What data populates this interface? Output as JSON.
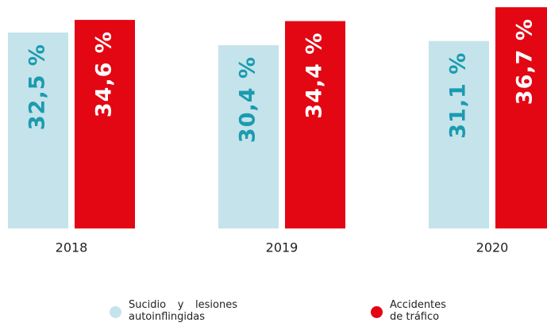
{
  "chart_data": {
    "type": "bar",
    "categories": [
      "2018",
      "2019",
      "2020"
    ],
    "series": [
      {
        "name": "Sucidio y lesiones autoinflingidas",
        "color": "#c5e3ea",
        "label_color": "#1a9bb0",
        "values": [
          32.5,
          30.4,
          31.1
        ],
        "value_labels": [
          "32,5 %",
          "30,4 %",
          "31,1 %"
        ]
      },
      {
        "name": "Accidentes de tráfico",
        "color": "#e30613",
        "label_color": "#ffffff",
        "values": [
          34.6,
          34.4,
          36.7
        ],
        "value_labels": [
          "34,6 %",
          "34,4 %",
          "36,7 %"
        ]
      }
    ],
    "ylim": [
      0,
      37.9
    ]
  }
}
